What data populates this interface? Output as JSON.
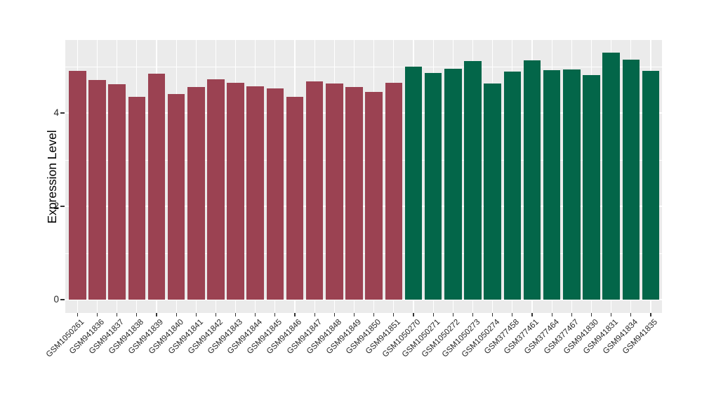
{
  "chart_data": {
    "type": "bar",
    "title": "",
    "xlabel": "",
    "ylabel": "Expression Level",
    "ylim": [
      0,
      5.56
    ],
    "yticks_major": [
      0,
      2,
      4
    ],
    "yticks_minor": [
      1,
      3,
      5
    ],
    "grid": "on",
    "legend": "none",
    "categories": [
      "GSM1050261",
      "GSM941836",
      "GSM941837",
      "GSM941838",
      "GSM941839",
      "GSM941840",
      "GSM941841",
      "GSM941842",
      "GSM941843",
      "GSM941844",
      "GSM941845",
      "GSM941846",
      "GSM941847",
      "GSM941848",
      "GSM941849",
      "GSM941850",
      "GSM941851",
      "GSM1050270",
      "GSM1050271",
      "GSM1050272",
      "GSM1050273",
      "GSM1050274",
      "GSM377458",
      "GSM377461",
      "GSM377464",
      "GSM377467",
      "GSM941830",
      "GSM941831",
      "GSM941834",
      "GSM941835"
    ],
    "values": [
      4.9,
      4.71,
      4.61,
      4.34,
      4.84,
      4.41,
      4.56,
      4.72,
      4.64,
      4.57,
      4.53,
      4.35,
      4.68,
      4.63,
      4.55,
      4.45,
      4.64,
      4.99,
      4.86,
      4.94,
      5.12,
      4.63,
      4.89,
      5.13,
      4.92,
      4.93,
      4.81,
      5.3,
      5.14,
      4.9
    ],
    "groups": [
      {
        "name": "maroon-group",
        "color": "#9B4252",
        "count": 17
      },
      {
        "name": "green-group",
        "color": "#036649",
        "count": 13
      }
    ]
  },
  "colors": {
    "panel_background": "#EBEBEB",
    "gridline": "#FFFFFF",
    "axis_text": "#262626",
    "axis_title": "#000000",
    "bar_maroon": "#9B4252",
    "bar_green": "#036649"
  }
}
